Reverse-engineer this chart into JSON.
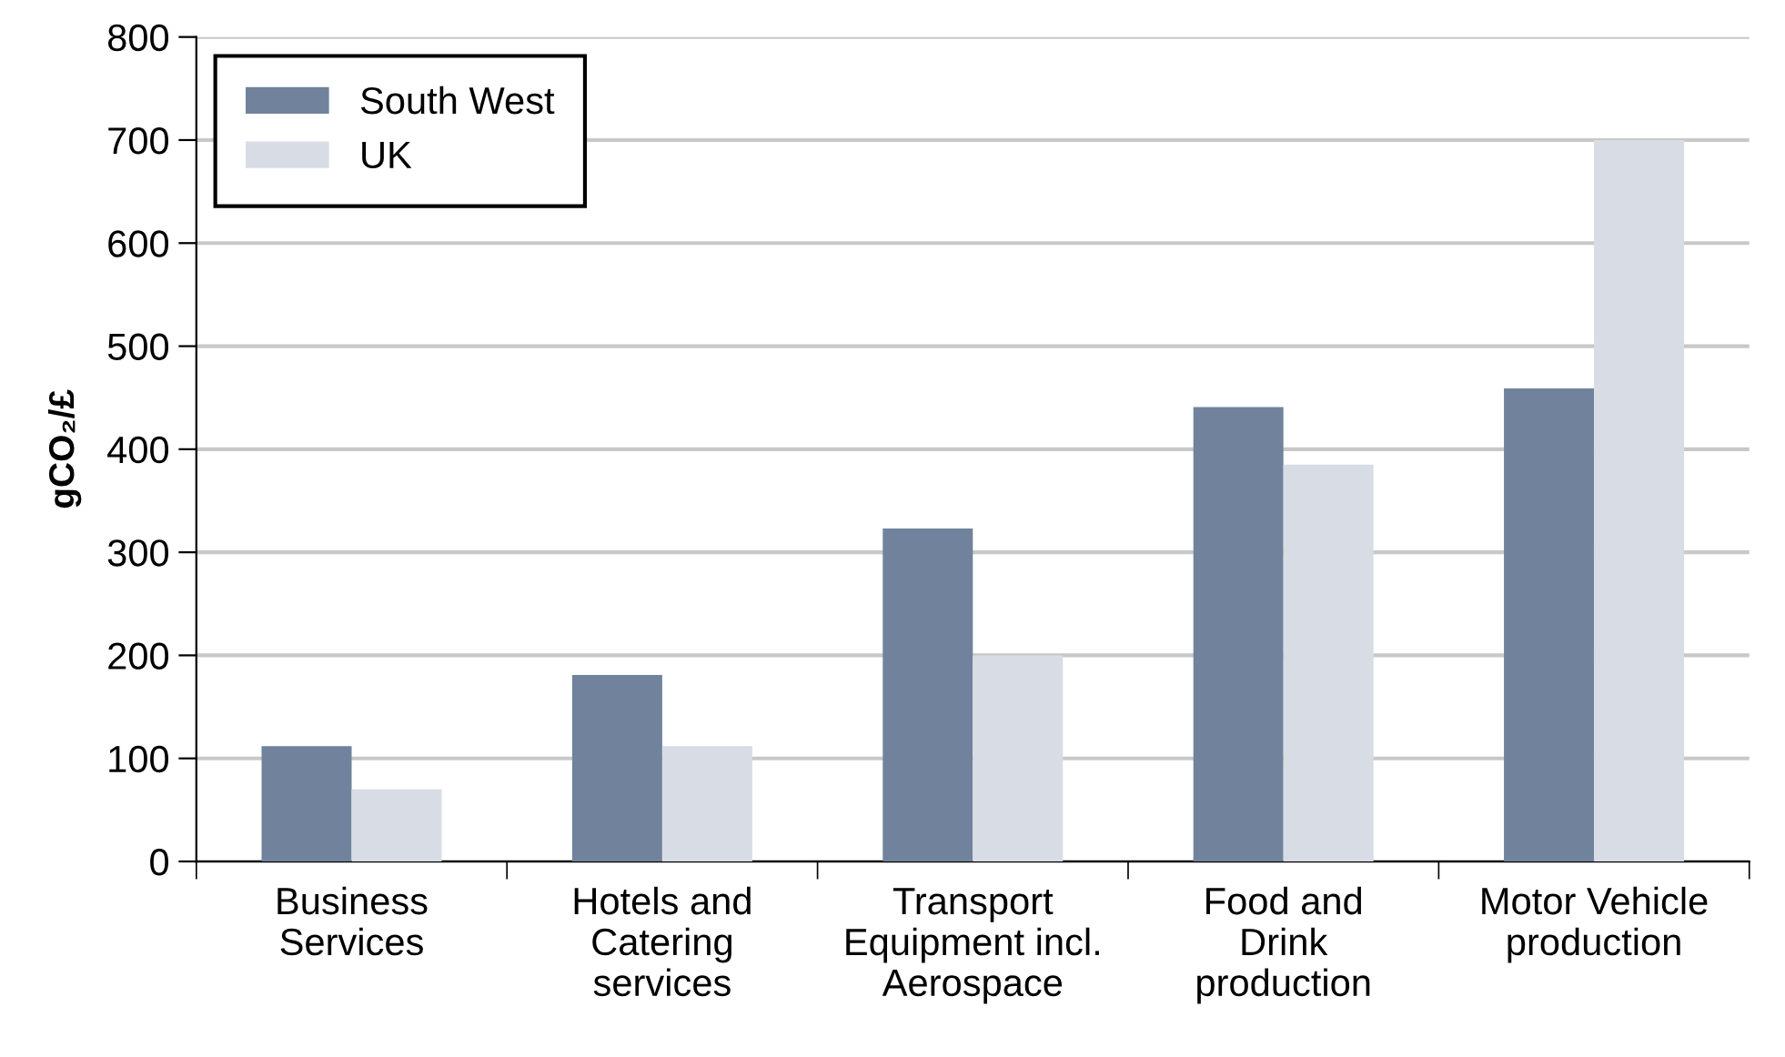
{
  "chart_data": {
    "type": "bar",
    "ylabel": "gCO₂/£",
    "categories": [
      "Business\nServices",
      "Hotels and\nCatering\nservices",
      "Transport\nEquipment incl.\nAerospace",
      "Food and\nDrink\nproduction",
      "Motor Vehicle\nproduction"
    ],
    "series": [
      {
        "name": "South West",
        "color": "#71839c",
        "values": [
          112,
          181,
          323,
          441,
          459
        ]
      },
      {
        "name": "UK",
        "color": "#d8dce5",
        "values": [
          70,
          112,
          200,
          385,
          700
        ]
      }
    ],
    "ylim": [
      0,
      800
    ],
    "yticks": [
      0,
      100,
      200,
      300,
      400,
      500,
      600,
      700,
      800
    ],
    "grid": "y",
    "legend": "top left"
  }
}
